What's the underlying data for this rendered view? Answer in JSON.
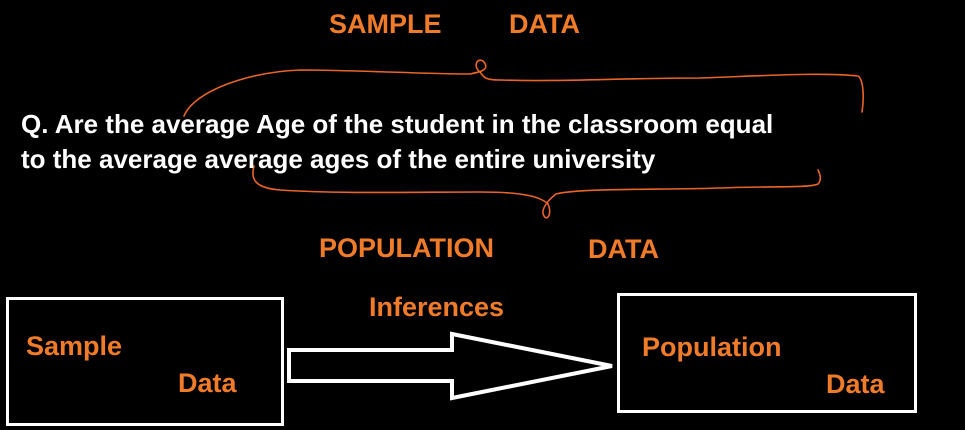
{
  "top_label": {
    "left": "SAMPLE",
    "right": "DATA"
  },
  "question": {
    "line1": "Q. Are the average Age of the student in the classroom equal",
    "line2": "to the average average ages of the entire university"
  },
  "bottom_label": {
    "left": "POPULATION",
    "right": "DATA"
  },
  "flow": {
    "arrow_label": "Inferences",
    "source": {
      "line1": "Sample",
      "line2": "Data"
    },
    "target": {
      "line1": "Population",
      "line2": "Data"
    }
  },
  "colors": {
    "background": "#000000",
    "accent": "#f07c2a",
    "text": "#ffffff",
    "bracket": "#e8652a"
  }
}
